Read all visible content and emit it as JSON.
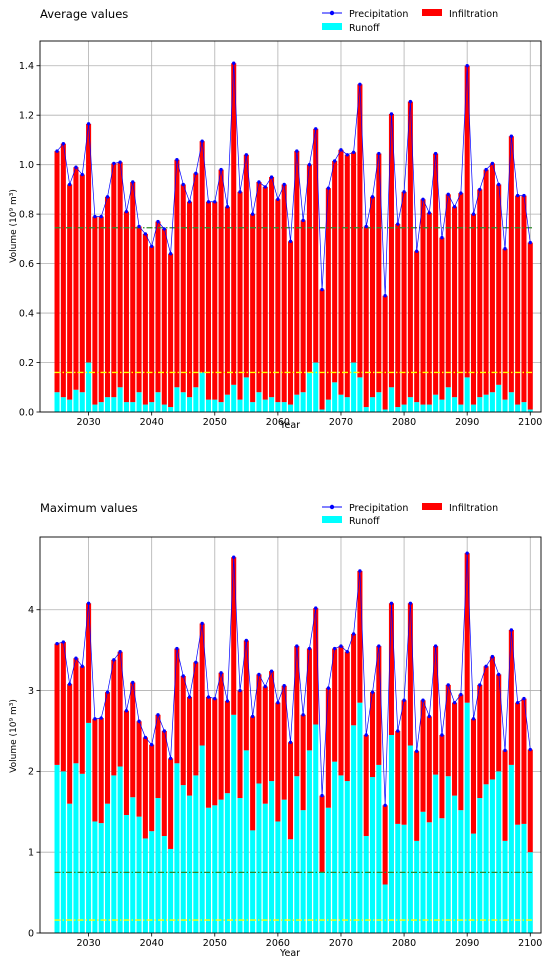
{
  "chart_data": [
    {
      "type": "bar",
      "title": "Average values",
      "xlabel": "Year",
      "ylabel": "Volume (10⁹ m³)",
      "xlim": [
        2022.3,
        2101.7
      ],
      "ylim": [
        0,
        1.5
      ],
      "xticks": [
        2030,
        2040,
        2050,
        2060,
        2070,
        2080,
        2090,
        2100
      ],
      "yticks": [
        0.0,
        0.2,
        0.4,
        0.6,
        0.8,
        1.0,
        1.2,
        1.4
      ],
      "ytick_decimals": 1,
      "grid": true,
      "legend_position": "top-right",
      "legend": [
        "Precipitation",
        "Infiltration",
        "Runoff"
      ],
      "x": [
        2025,
        2026,
        2027,
        2028,
        2029,
        2030,
        2031,
        2032,
        2033,
        2034,
        2035,
        2036,
        2037,
        2038,
        2039,
        2040,
        2041,
        2042,
        2043,
        2044,
        2045,
        2046,
        2047,
        2048,
        2049,
        2050,
        2051,
        2052,
        2053,
        2054,
        2055,
        2056,
        2057,
        2058,
        2059,
        2060,
        2061,
        2062,
        2063,
        2064,
        2065,
        2066,
        2067,
        2068,
        2069,
        2070,
        2071,
        2072,
        2073,
        2074,
        2075,
        2076,
        2077,
        2078,
        2079,
        2080,
        2081,
        2082,
        2083,
        2084,
        2085,
        2086,
        2087,
        2088,
        2089,
        2090,
        2091,
        2092,
        2093,
        2094,
        2095,
        2096,
        2097,
        2098,
        2099,
        2100
      ],
      "series": [
        {
          "name": "Precipitation",
          "kind": "line",
          "color": "#0000ff",
          "values": [
            1.055,
            1.085,
            0.92,
            0.99,
            0.96,
            1.165,
            0.79,
            0.79,
            0.87,
            1.005,
            1.01,
            0.81,
            0.93,
            0.75,
            0.72,
            0.67,
            0.77,
            0.74,
            0.64,
            1.02,
            0.92,
            0.85,
            0.965,
            1.095,
            0.85,
            0.85,
            0.98,
            0.83,
            1.41,
            0.89,
            1.04,
            0.8,
            0.93,
            0.91,
            0.95,
            0.86,
            0.92,
            0.69,
            1.055,
            0.775,
            1.0,
            1.145,
            0.495,
            0.905,
            1.015,
            1.06,
            1.04,
            1.05,
            1.325,
            0.75,
            0.87,
            1.045,
            0.47,
            1.205,
            0.76,
            0.89,
            1.255,
            0.65,
            0.86,
            0.805,
            1.045,
            0.705,
            0.88,
            0.83,
            0.885,
            1.4,
            0.8,
            0.9,
            0.98,
            1.005,
            0.92,
            0.66,
            1.115,
            0.875,
            0.875,
            0.685
          ]
        },
        {
          "name": "Runoff",
          "kind": "bar",
          "color": "#00ffff",
          "values": [
            0.08,
            0.06,
            0.05,
            0.09,
            0.08,
            0.2,
            0.03,
            0.04,
            0.06,
            0.06,
            0.1,
            0.04,
            0.04,
            0.08,
            0.03,
            0.04,
            0.08,
            0.03,
            0.02,
            0.1,
            0.08,
            0.06,
            0.1,
            0.16,
            0.05,
            0.05,
            0.04,
            0.07,
            0.11,
            0.05,
            0.14,
            0.04,
            0.08,
            0.05,
            0.06,
            0.04,
            0.04,
            0.03,
            0.07,
            0.08,
            0.16,
            0.2,
            0.01,
            0.05,
            0.12,
            0.07,
            0.06,
            0.2,
            0.14,
            0.02,
            0.06,
            0.08,
            0.01,
            0.1,
            0.02,
            0.03,
            0.06,
            0.04,
            0.03,
            0.03,
            0.07,
            0.05,
            0.1,
            0.06,
            0.03,
            0.14,
            0.03,
            0.06,
            0.07,
            0.08,
            0.11,
            0.05,
            0.08,
            0.03,
            0.04,
            0.01
          ]
        },
        {
          "name": "Infiltration",
          "kind": "bar",
          "color": "#ff0000",
          "values": [
            0.975,
            1.025,
            0.87,
            0.9,
            0.88,
            0.965,
            0.76,
            0.75,
            0.81,
            0.945,
            0.91,
            0.77,
            0.89,
            0.67,
            0.69,
            0.63,
            0.69,
            0.71,
            0.62,
            0.92,
            0.84,
            0.79,
            0.865,
            0.935,
            0.8,
            0.8,
            0.94,
            0.76,
            1.3,
            0.84,
            0.9,
            0.76,
            0.85,
            0.86,
            0.89,
            0.82,
            0.88,
            0.66,
            0.985,
            0.695,
            0.84,
            0.945,
            0.485,
            0.855,
            0.895,
            0.99,
            0.98,
            0.85,
            1.185,
            0.73,
            0.81,
            0.965,
            0.46,
            1.105,
            0.74,
            0.86,
            1.195,
            0.61,
            0.83,
            0.775,
            0.975,
            0.655,
            0.78,
            0.77,
            0.855,
            1.26,
            0.77,
            0.84,
            0.91,
            0.925,
            0.81,
            0.61,
            1.035,
            0.845,
            0.835,
            0.675
          ]
        }
      ],
      "reference_lines": [
        {
          "value": 0.745,
          "color": "#2e8b2e",
          "style": "dashdot"
        },
        {
          "value": 0.16,
          "color": "#ffff00",
          "style": "dashdot"
        }
      ]
    },
    {
      "type": "bar",
      "title": "Maximum values",
      "xlabel": "Year",
      "ylabel": "Volume (10⁹ m³)",
      "xlim": [
        2022.3,
        2101.7
      ],
      "ylim": [
        0,
        4.9
      ],
      "xticks": [
        2030,
        2040,
        2050,
        2060,
        2070,
        2080,
        2090,
        2100
      ],
      "yticks": [
        0,
        1,
        2,
        3,
        4
      ],
      "ytick_decimals": 0,
      "grid": true,
      "legend_position": "top-right",
      "legend": [
        "Precipitation",
        "Infiltration",
        "Runoff"
      ],
      "x": [
        2025,
        2026,
        2027,
        2028,
        2029,
        2030,
        2031,
        2032,
        2033,
        2034,
        2035,
        2036,
        2037,
        2038,
        2039,
        2040,
        2041,
        2042,
        2043,
        2044,
        2045,
        2046,
        2047,
        2048,
        2049,
        2050,
        2051,
        2052,
        2053,
        2054,
        2055,
        2056,
        2057,
        2058,
        2059,
        2060,
        2061,
        2062,
        2063,
        2064,
        2065,
        2066,
        2067,
        2068,
        2069,
        2070,
        2071,
        2072,
        2073,
        2074,
        2075,
        2076,
        2077,
        2078,
        2079,
        2080,
        2081,
        2082,
        2083,
        2084,
        2085,
        2086,
        2087,
        2088,
        2089,
        2090,
        2091,
        2092,
        2093,
        2094,
        2095,
        2096,
        2097,
        2098,
        2099,
        2100
      ],
      "series": [
        {
          "name": "Precipitation",
          "kind": "line",
          "color": "#0000ff",
          "values": [
            3.58,
            3.6,
            3.08,
            3.4,
            3.3,
            4.08,
            2.65,
            2.66,
            2.98,
            3.38,
            3.48,
            2.75,
            3.1,
            2.62,
            2.42,
            2.33,
            2.7,
            2.5,
            2.16,
            3.52,
            3.18,
            2.92,
            3.35,
            3.83,
            2.92,
            2.9,
            3.22,
            2.87,
            4.65,
            3.0,
            3.62,
            2.68,
            3.2,
            3.05,
            3.24,
            2.85,
            3.06,
            2.36,
            3.55,
            2.7,
            3.52,
            4.02,
            1.7,
            3.03,
            3.52,
            3.55,
            3.48,
            3.7,
            4.48,
            2.45,
            2.98,
            3.55,
            1.58,
            4.08,
            2.5,
            2.88,
            4.08,
            2.25,
            2.88,
            2.68,
            3.55,
            2.45,
            3.07,
            2.85,
            2.95,
            4.7,
            2.65,
            3.07,
            3.3,
            3.42,
            3.2,
            2.26,
            3.75,
            2.85,
            2.9,
            2.27
          ]
        },
        {
          "name": "Runoff",
          "kind": "bar",
          "color": "#00ffff",
          "values": [
            2.08,
            2.0,
            1.6,
            2.1,
            1.97,
            2.6,
            1.38,
            1.36,
            1.6,
            1.95,
            2.06,
            1.46,
            1.68,
            1.44,
            1.17,
            1.26,
            1.67,
            1.2,
            1.04,
            2.1,
            1.83,
            1.7,
            1.95,
            2.32,
            1.55,
            1.58,
            1.65,
            1.73,
            2.7,
            1.67,
            2.26,
            1.27,
            1.85,
            1.6,
            1.88,
            1.38,
            1.65,
            1.16,
            1.94,
            1.52,
            2.26,
            2.58,
            0.75,
            1.55,
            2.12,
            1.95,
            1.88,
            2.57,
            2.85,
            1.2,
            1.93,
            2.08,
            0.6,
            2.45,
            1.35,
            1.34,
            2.32,
            1.14,
            1.5,
            1.37,
            1.96,
            1.42,
            1.94,
            1.7,
            1.52,
            2.85,
            1.23,
            1.67,
            1.84,
            1.9,
            2.0,
            1.14,
            2.08,
            1.34,
            1.35,
            1.0
          ]
        },
        {
          "name": "Infiltration",
          "kind": "bar",
          "color": "#ff0000",
          "values": [
            1.5,
            1.6,
            1.48,
            1.3,
            1.33,
            1.48,
            1.27,
            1.3,
            1.38,
            1.43,
            1.42,
            1.29,
            1.42,
            1.18,
            1.25,
            1.07,
            1.03,
            1.3,
            1.12,
            1.42,
            1.35,
            1.22,
            1.4,
            1.51,
            1.37,
            1.32,
            1.57,
            1.14,
            1.95,
            1.33,
            1.36,
            1.41,
            1.35,
            1.45,
            1.36,
            1.47,
            1.41,
            1.2,
            1.61,
            1.18,
            1.26,
            1.44,
            0.95,
            1.48,
            1.4,
            1.6,
            1.6,
            1.13,
            1.63,
            1.25,
            1.05,
            1.47,
            0.98,
            1.63,
            1.15,
            1.54,
            1.76,
            1.11,
            1.38,
            1.31,
            1.59,
            1.03,
            1.13,
            1.15,
            1.43,
            1.85,
            1.42,
            1.4,
            1.46,
            1.52,
            1.2,
            1.12,
            1.67,
            1.51,
            1.55,
            1.27
          ]
        }
      ],
      "reference_lines": [
        {
          "value": 0.75,
          "color": "#2e8b2e",
          "style": "dashdot"
        },
        {
          "value": 0.16,
          "color": "#ffff00",
          "style": "dashdot"
        }
      ]
    }
  ]
}
